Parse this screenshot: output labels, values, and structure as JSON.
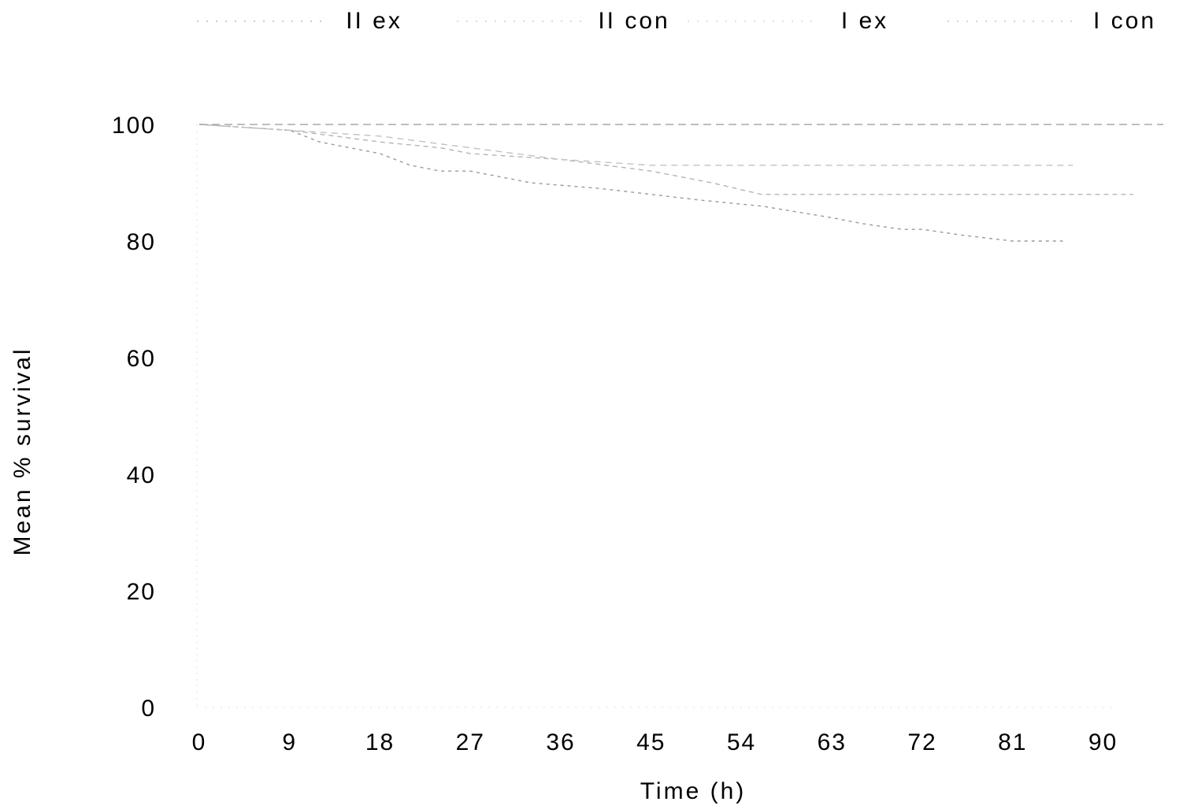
{
  "chart_data": {
    "type": "line",
    "title": "",
    "xlabel": "Time (h)",
    "ylabel": "Mean % survival",
    "xlim": [
      0,
      97
    ],
    "ylim": [
      0,
      100
    ],
    "x_ticks": [
      0,
      9,
      18,
      27,
      36,
      45,
      54,
      63,
      72,
      81,
      90
    ],
    "y_ticks": [
      0,
      20,
      40,
      60,
      80,
      100
    ],
    "grid": false,
    "legend_position": "top",
    "series": [
      {
        "name": "II ex",
        "color": "#9a9a9a",
        "dash": "4 5",
        "x": [
          0,
          9,
          12,
          18,
          21,
          24,
          27,
          33,
          40,
          45,
          50,
          56,
          63,
          66,
          70,
          72,
          76,
          81,
          86
        ],
        "y": [
          100,
          99,
          97,
          95,
          93,
          92,
          92,
          90,
          89,
          88,
          87,
          86,
          84,
          83,
          82,
          82,
          81,
          80,
          80
        ]
      },
      {
        "name": "II con",
        "color": "#b5b5b5",
        "dash": "6 5",
        "x": [
          0,
          9,
          18,
          24,
          27,
          36,
          45,
          51,
          56,
          63,
          72,
          81,
          88,
          93
        ],
        "y": [
          100,
          99,
          97,
          96,
          95,
          94,
          92,
          90,
          88,
          88,
          88,
          88,
          88,
          88
        ]
      },
      {
        "name": "I ex",
        "color": "#c2c2c2",
        "dash": "8 6",
        "x": [
          0,
          9,
          18,
          27,
          36,
          45,
          54,
          63,
          72,
          81,
          87
        ],
        "y": [
          100,
          99,
          98,
          96,
          94,
          93,
          93,
          93,
          93,
          93,
          93
        ]
      },
      {
        "name": "I con",
        "color": "#a8a8a8",
        "dash": "10 6",
        "x": [
          0,
          9,
          18,
          27,
          36,
          45,
          54,
          63,
          72,
          81,
          90,
          96
        ],
        "y": [
          100,
          100,
          100,
          100,
          100,
          100,
          100,
          100,
          100,
          100,
          100,
          100
        ]
      }
    ]
  }
}
